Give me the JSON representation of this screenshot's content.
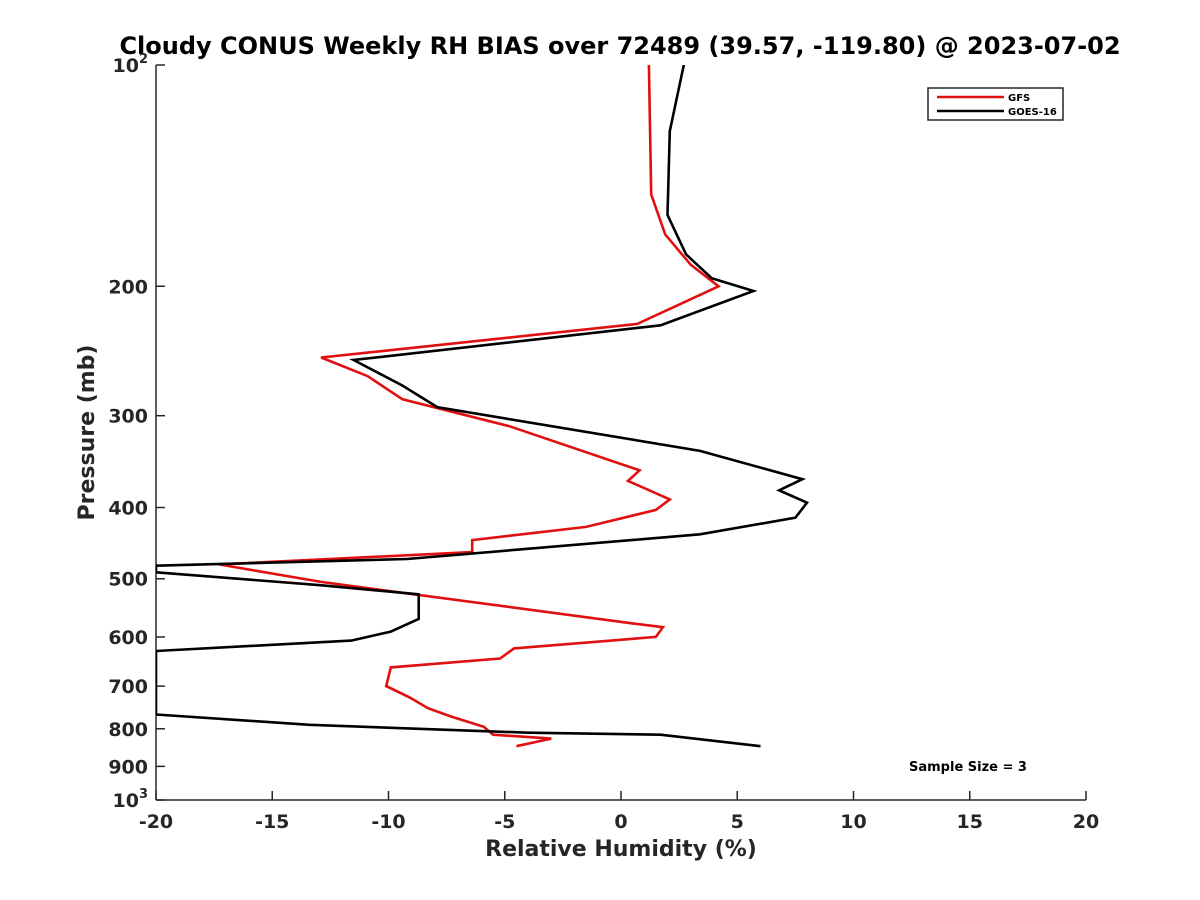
{
  "chart_data": {
    "type": "line",
    "title": "Cloudy CONUS Weekly RH BIAS over 72489 (39.57, -119.80) @ 2023-07-02",
    "xlabel": "Relative Humidity (%)",
    "ylabel": "Pressure (mb)",
    "xlim": [
      -20,
      20
    ],
    "ylim": [
      100,
      1000
    ],
    "y_scale": "log",
    "y_reversed": true,
    "grid": false,
    "legend_position": "top-right",
    "annotation": "Sample Size = 3",
    "x_ticks": [
      "-20",
      "-15",
      "-10",
      "-5",
      "0",
      "5",
      "10",
      "15",
      "20"
    ],
    "y_ticks": [
      {
        "value": 100,
        "base": "10",
        "exp": "2"
      },
      {
        "value": 200,
        "label": "200"
      },
      {
        "value": 300,
        "label": "300"
      },
      {
        "value": 400,
        "label": "400"
      },
      {
        "value": 500,
        "label": "500"
      },
      {
        "value": 600,
        "label": "600"
      },
      {
        "value": 700,
        "label": "700"
      },
      {
        "value": 800,
        "label": "800"
      },
      {
        "value": 900,
        "label": "900"
      },
      {
        "value": 1000,
        "base": "10",
        "exp": "3"
      }
    ],
    "series": [
      {
        "name": "GFS",
        "color": "#e01010",
        "points": [
          [
            1.2,
            100
          ],
          [
            1.3,
            150
          ],
          [
            1.9,
            170
          ],
          [
            3.0,
            187
          ],
          [
            4.2,
            200
          ],
          [
            0.7,
            225
          ],
          [
            -12.9,
            250
          ],
          [
            -10.9,
            265
          ],
          [
            -9.4,
            285
          ],
          [
            -4.8,
            310
          ],
          [
            0.8,
            356
          ],
          [
            0.3,
            368
          ],
          [
            2.1,
            390
          ],
          [
            1.5,
            403
          ],
          [
            -1.5,
            425
          ],
          [
            -6.4,
            443
          ],
          [
            -6.4,
            460
          ],
          [
            -17.3,
            478
          ],
          [
            -12.9,
            505
          ],
          [
            0.5,
            575
          ],
          [
            1.8,
            582
          ],
          [
            1.5,
            600
          ],
          [
            -4.6,
            622
          ],
          [
            -5.2,
            642
          ],
          [
            -9.9,
            660
          ],
          [
            -10.1,
            700
          ],
          [
            -9.1,
            725
          ],
          [
            -8.3,
            750
          ],
          [
            -7.3,
            770
          ],
          [
            -5.9,
            795
          ],
          [
            -5.5,
            815
          ],
          [
            -3.0,
            825
          ],
          [
            -4.5,
            845
          ]
        ]
      },
      {
        "name": "GOES-16",
        "color": "#000000",
        "points": [
          [
            2.7,
            100
          ],
          [
            2.1,
            123
          ],
          [
            2.0,
            160
          ],
          [
            2.8,
            181
          ],
          [
            3.9,
            195
          ],
          [
            5.7,
            203
          ],
          [
            1.7,
            226
          ],
          [
            -11.5,
            252
          ],
          [
            -9.4,
            273
          ],
          [
            -7.9,
            292
          ],
          [
            3.4,
            335
          ],
          [
            7.8,
            366
          ],
          [
            6.8,
            379
          ],
          [
            8.0,
            394
          ],
          [
            7.5,
            413
          ],
          [
            3.4,
            435
          ],
          [
            -9.2,
            470
          ],
          [
            -20.0,
            480
          ],
          [
            -20.0,
            490
          ],
          [
            -13.0,
            510
          ],
          [
            -8.7,
            525
          ],
          [
            -8.7,
            567
          ],
          [
            -9.9,
            590
          ],
          [
            -11.6,
            607
          ],
          [
            -20.0,
            627
          ],
          [
            -20.0,
            765
          ],
          [
            -13.4,
            790
          ],
          [
            -4.0,
            810
          ],
          [
            1.7,
            815
          ],
          [
            6.0,
            845
          ]
        ]
      }
    ]
  }
}
